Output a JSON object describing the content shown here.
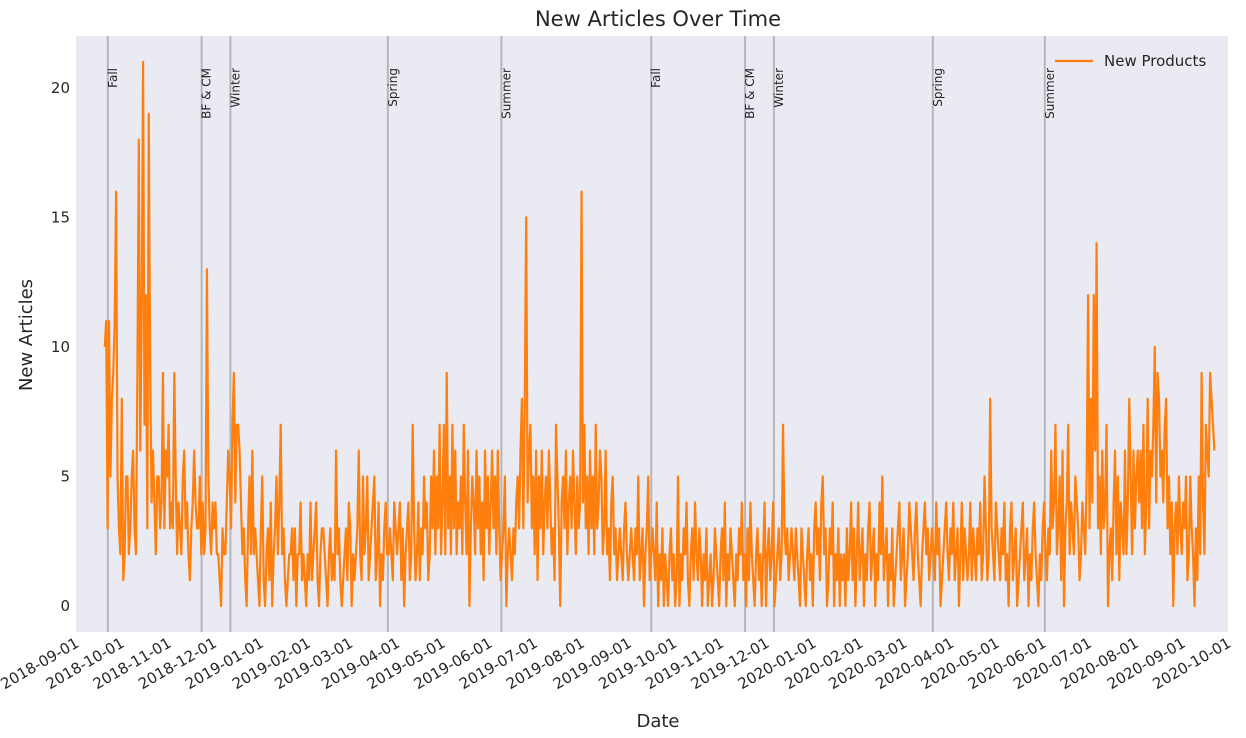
{
  "chart_data": {
    "type": "line",
    "title": "New Articles Over Time",
    "xlabel": "Date",
    "ylabel": "New Articles",
    "x_axis_type": "date",
    "xlim": [
      "2018-09-01",
      "2020-10-01"
    ],
    "ylim": [
      -1,
      22
    ],
    "yticks": [
      0,
      5,
      10,
      15,
      20
    ],
    "xticks": [
      "2018-09-01",
      "2018-10-01",
      "2018-11-01",
      "2018-12-01",
      "2019-01-01",
      "2019-02-01",
      "2019-03-01",
      "2019-04-01",
      "2019-05-01",
      "2019-06-01",
      "2019-07-01",
      "2019-08-01",
      "2019-09-01",
      "2019-10-01",
      "2019-11-01",
      "2019-12-01",
      "2020-01-01",
      "2020-02-01",
      "2020-03-01",
      "2020-04-01",
      "2020-05-01",
      "2020-06-01",
      "2020-07-01",
      "2020-08-01",
      "2020-09-01",
      "2020-10-01"
    ],
    "grid": false,
    "legend_position": "top-right",
    "background_color": "#eaeaf2",
    "series": [
      {
        "name": "New Products",
        "color": "#ff7f0e",
        "x_start": "2018-09-20",
        "x_end": "2020-09-22",
        "values": [
          10,
          11,
          3,
          11,
          5,
          8,
          9,
          11,
          16,
          5,
          3,
          2,
          8,
          1,
          2,
          5,
          5,
          2,
          3,
          5,
          6,
          3,
          2,
          9,
          18,
          6,
          11,
          21,
          7,
          12,
          3,
          19,
          9,
          4,
          6,
          4,
          2,
          5,
          5,
          3,
          4,
          9,
          3,
          6,
          5,
          7,
          3,
          4,
          3,
          9,
          5,
          2,
          4,
          3,
          2,
          5,
          6,
          3,
          4,
          2,
          1,
          3,
          4,
          6,
          4,
          3,
          3,
          5,
          2,
          4,
          2,
          3,
          13,
          5,
          3,
          2,
          4,
          3,
          4,
          2,
          2,
          1,
          0,
          3,
          2,
          2,
          4,
          6,
          5,
          3,
          7,
          9,
          4,
          7,
          7,
          6,
          4,
          2,
          3,
          1,
          0,
          3,
          5,
          2,
          6,
          2,
          3,
          2,
          1,
          0,
          3,
          5,
          1,
          0,
          2,
          3,
          1,
          4,
          0,
          2,
          3,
          5,
          2,
          4,
          7,
          2,
          3,
          1,
          0,
          1,
          2,
          2,
          3,
          1,
          3,
          0,
          2,
          2,
          4,
          1,
          2,
          1,
          0,
          2,
          1,
          4,
          1,
          2,
          3,
          4,
          1,
          0,
          2,
          3,
          3,
          2,
          1,
          0,
          2,
          3,
          1,
          2,
          1,
          6,
          2,
          3,
          1,
          0,
          1,
          2,
          3,
          1,
          4,
          3,
          0,
          2,
          1,
          2,
          3,
          6,
          2,
          1,
          5,
          2,
          3,
          5,
          1,
          2,
          3,
          4,
          5,
          1,
          2,
          4,
          0,
          2,
          1,
          3,
          4,
          2,
          2,
          3,
          2,
          1,
          4,
          3,
          2,
          3,
          4,
          1,
          3,
          0,
          2,
          3,
          4,
          1,
          2,
          7,
          3,
          1,
          2,
          4,
          1,
          3,
          2,
          5,
          3,
          4,
          1,
          2,
          5,
          3,
          6,
          2,
          5,
          3,
          7,
          2,
          4,
          7,
          2,
          9,
          3,
          5,
          2,
          7,
          3,
          6,
          2,
          4,
          3,
          5,
          2,
          7,
          4,
          2,
          6,
          0,
          3,
          5,
          4,
          2,
          6,
          3,
          5,
          2,
          4,
          1,
          6,
          3,
          5,
          2,
          4,
          6,
          3,
          5,
          2,
          6,
          3,
          1,
          2,
          3,
          5,
          0,
          2,
          3,
          2,
          1,
          3,
          2,
          4,
          5,
          3,
          6,
          8,
          3,
          8,
          15,
          4,
          6,
          7,
          3,
          5,
          2,
          6,
          1,
          5,
          3,
          6,
          2,
          4,
          5,
          3,
          6,
          4,
          2,
          3,
          1,
          7,
          5,
          3,
          0,
          4,
          5,
          3,
          6,
          2,
          4,
          5,
          3,
          6,
          4,
          2,
          5,
          3,
          4,
          16,
          4,
          7,
          3,
          5,
          2,
          6,
          3,
          5,
          2,
          7,
          3,
          4,
          6,
          5,
          2,
          3,
          6,
          2,
          3,
          1,
          4,
          5,
          2,
          3,
          1,
          2,
          3,
          2,
          1,
          3,
          4,
          2,
          1,
          2,
          3,
          2,
          1,
          3,
          2,
          5,
          1,
          2,
          3,
          0,
          2,
          3,
          5,
          1,
          2,
          3,
          2,
          1,
          4,
          0,
          2,
          1,
          3,
          0,
          2,
          1,
          0,
          2,
          3,
          1,
          2,
          0,
          1,
          5,
          0,
          2,
          1,
          3,
          2,
          4,
          1,
          0,
          2,
          3,
          1,
          4,
          2,
          1,
          3,
          2,
          0,
          2,
          1,
          3,
          0,
          1,
          2,
          0,
          1,
          3,
          2,
          1,
          0,
          2,
          3,
          1,
          4,
          0,
          2,
          1,
          3,
          2,
          1,
          0,
          2,
          1,
          3,
          2,
          4,
          1,
          2,
          0,
          3,
          1,
          4,
          2,
          1,
          0,
          2,
          3,
          1,
          2,
          0,
          2,
          4,
          0,
          2,
          3,
          1,
          2,
          4,
          0,
          1,
          2,
          3,
          1,
          2,
          7,
          3,
          2,
          3,
          1,
          2,
          3,
          2,
          1,
          3,
          2,
          1,
          0,
          3,
          2,
          1,
          0,
          2,
          3,
          1,
          2,
          0,
          3,
          4,
          2,
          3,
          1,
          4,
          5,
          2,
          3,
          0,
          1,
          3,
          2,
          4,
          0,
          2,
          1,
          3,
          0,
          2,
          1,
          2,
          0,
          3,
          1,
          2,
          4,
          1,
          3,
          0,
          2,
          4,
          1,
          2,
          3,
          0,
          2,
          1,
          3,
          4,
          1,
          2,
          3,
          0,
          2,
          1,
          4,
          2,
          5,
          1,
          2,
          3,
          0,
          2,
          1,
          3,
          0,
          1,
          2,
          3,
          4,
          1,
          2,
          3,
          0,
          1,
          2,
          4,
          3,
          2,
          1,
          3,
          4,
          2,
          1,
          0,
          2,
          3,
          4,
          2,
          3,
          1,
          2,
          3,
          2,
          1,
          4,
          2,
          3,
          0,
          1,
          2,
          3,
          4,
          2,
          1,
          3,
          2,
          4,
          1,
          2,
          3,
          0,
          2,
          4,
          1,
          3,
          2,
          1,
          2,
          4,
          1,
          3,
          2,
          1,
          3,
          2,
          4,
          1,
          2,
          5,
          3,
          1,
          2,
          8,
          3,
          2,
          1,
          4,
          3,
          2,
          1,
          3,
          2,
          4,
          1,
          2,
          0,
          3,
          4,
          1,
          2,
          3,
          0,
          1,
          2,
          3,
          4,
          1,
          2,
          3,
          0,
          2,
          1,
          3,
          4,
          2,
          1,
          0,
          2,
          1,
          3,
          4,
          2,
          1,
          3,
          2,
          6,
          3,
          4,
          7,
          2,
          3,
          5,
          1,
          6,
          0,
          3,
          4,
          7,
          2,
          4,
          3,
          2,
          5,
          4,
          3,
          1,
          2,
          4,
          3,
          2,
          5,
          12,
          3,
          8,
          4,
          12,
          6,
          14,
          3,
          5,
          2,
          6,
          3,
          4,
          7,
          0,
          2,
          3,
          1,
          4,
          6,
          2,
          5,
          1,
          4,
          3,
          2,
          6,
          2,
          4,
          8,
          5,
          2,
          6,
          3,
          5,
          6,
          4,
          6,
          3,
          7,
          2,
          4,
          8,
          3,
          6,
          5,
          7,
          10,
          4,
          9,
          8,
          5,
          6,
          4,
          7,
          8,
          3,
          5,
          2,
          4,
          0,
          3,
          4,
          2,
          5,
          3,
          2,
          4,
          3,
          5,
          1,
          2,
          5,
          3,
          2,
          0,
          3,
          1,
          5,
          2,
          9,
          4,
          2,
          7,
          6,
          5,
          9,
          8,
          7,
          6
        ]
      }
    ],
    "season_markers": [
      {
        "label": "Fall",
        "date": "2018-09-22"
      },
      {
        "label": "BF & CM",
        "date": "2018-11-23"
      },
      {
        "label": "Winter",
        "date": "2018-12-12"
      },
      {
        "label": "Spring",
        "date": "2019-03-26"
      },
      {
        "label": "Summer",
        "date": "2019-06-09"
      },
      {
        "label": "Fall",
        "date": "2019-09-16"
      },
      {
        "label": "BF & CM",
        "date": "2019-11-17"
      },
      {
        "label": "Winter",
        "date": "2019-12-06"
      },
      {
        "label": "Spring",
        "date": "2020-03-20"
      },
      {
        "label": "Summer",
        "date": "2020-06-02"
      }
    ]
  }
}
